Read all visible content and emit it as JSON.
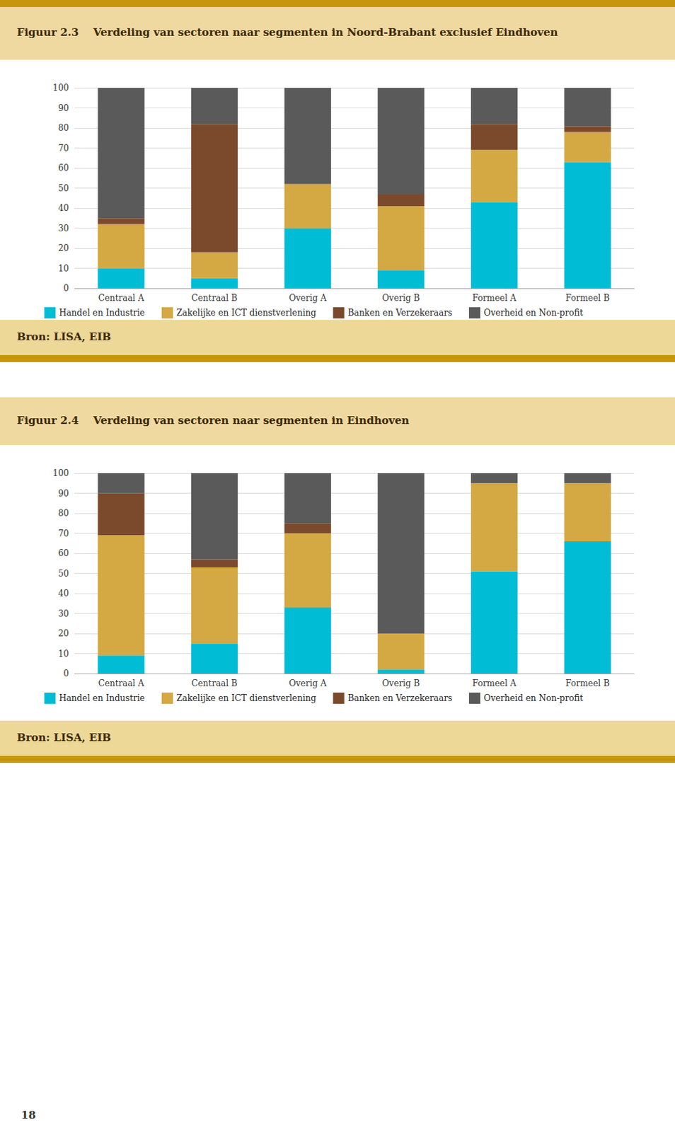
{
  "chart_data": [
    {
      "type": "bar",
      "title": "Figuur 2.3    Verdeling van sectoren naar segmenten in Noord-Brabant exclusief Eindhoven",
      "categories": [
        "Centraal A",
        "Centraal B",
        "Overig A",
        "Overig B",
        "Formeel A",
        "Formeel B"
      ],
      "series": [
        {
          "name": "Handel en Industrie",
          "color": "#00BCD4",
          "values": [
            10,
            5,
            30,
            9,
            43,
            63
          ]
        },
        {
          "name": "Zakelijke en ICT dienstverlening",
          "color": "#D4A843",
          "values": [
            22,
            13,
            22,
            32,
            26,
            15
          ]
        },
        {
          "name": "Banken en Verzekeraars",
          "color": "#7B4A2D",
          "values": [
            3,
            64,
            0,
            6,
            13,
            3
          ]
        },
        {
          "name": "Overheid en Non-profit",
          "color": "#5A5A5A",
          "values": [
            65,
            18,
            48,
            53,
            18,
            19
          ]
        }
      ],
      "stacked": true,
      "ylim": [
        0,
        100
      ],
      "yticks": [
        0,
        10,
        20,
        30,
        40,
        50,
        60,
        70,
        80,
        90,
        100
      ],
      "grid": true,
      "legend": "bottom",
      "annotations": [
        "Bron: LISA, EIB"
      ]
    },
    {
      "type": "bar",
      "title": "Figuur 2.4    Verdeling van sectoren naar segmenten in Eindhoven",
      "categories": [
        "Centraal A",
        "Centraal B",
        "Overig A",
        "Overig B",
        "Formeel A",
        "Formeel B"
      ],
      "series": [
        {
          "name": "Handel en Industrie",
          "color": "#00BCD4",
          "values": [
            9,
            15,
            33,
            2,
            51,
            66
          ]
        },
        {
          "name": "Zakelijke en ICT dienstverlening",
          "color": "#D4A843",
          "values": [
            60,
            38,
            37,
            18,
            44,
            29
          ]
        },
        {
          "name": "Banken en Verzekeraars",
          "color": "#7B4A2D",
          "values": [
            21,
            4,
            5,
            0,
            0,
            0
          ]
        },
        {
          "name": "Overheid en Non-profit",
          "color": "#5A5A5A",
          "values": [
            10,
            43,
            25,
            80,
            5,
            5
          ]
        }
      ],
      "stacked": true,
      "ylim": [
        0,
        100
      ],
      "yticks": [
        0,
        10,
        20,
        30,
        40,
        50,
        60,
        70,
        80,
        90,
        100
      ],
      "grid": true,
      "legend": "bottom",
      "annotations": [
        "Bron: LISA, EIB",
        "18"
      ]
    }
  ]
}
